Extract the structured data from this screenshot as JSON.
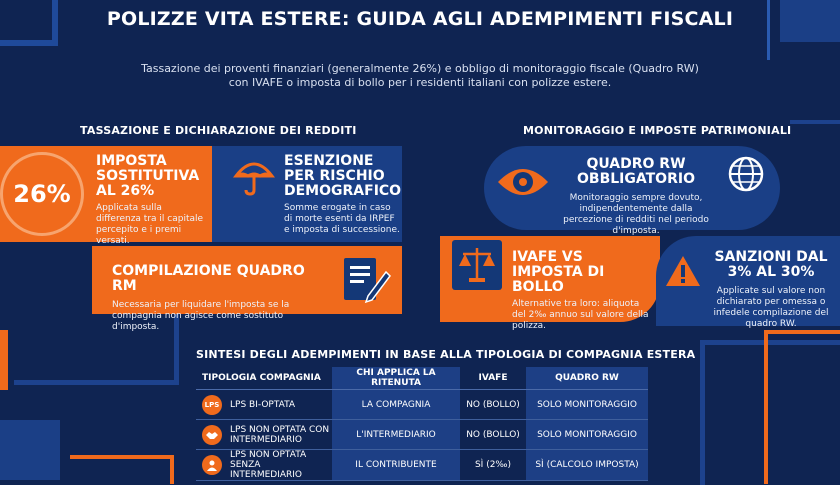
{
  "title": "POLIZZE VITA ESTERE: GUIDA AGLI ADEMPIMENTI FISCALI",
  "subtitle": "Tassazione dei proventi finanziari (generalmente 26%) e obbligo di monitoraggio fiscale (Quadro RW) con IVAFE o imposta di bollo per i residenti italiani con polizze estere.",
  "left_section": {
    "heading": "TASSAZIONE E DICHIARAZIONE DEI REDDITI",
    "rate_badge": "26%",
    "imposta": {
      "title": "IMPOSTA SOSTITUTIVA AL 26%",
      "desc": "Applicata sulla differenza tra il capitale percepito e i premi versati."
    },
    "esenzione": {
      "title": "ESENZIONE PER RISCHIO DEMOGRAFICO",
      "desc": "Somme erogate in caso di morte esenti da IRPEF e imposta di successione.",
      "icon": "umbrella-icon"
    },
    "compilazione": {
      "title": "COMPILAZIONE QUADRO RM",
      "desc": "Necessaria per liquidare l'imposta se la compagnia non agisce come sostituto d'imposta.",
      "icon": "document-pen-icon"
    }
  },
  "right_section": {
    "heading": "MONITORAGGIO E IMPOSTE PATRIMONIALI",
    "quadro_rw": {
      "title": "QUADRO RW OBBLIGATORIO",
      "desc": "Monitoraggio sempre dovuto, indipendentemente dalla percezione di redditi nel periodo d'imposta.",
      "icons": [
        "eye-icon",
        "globe-icon"
      ]
    },
    "ivafe": {
      "title": "IVAFE VS IMPOSTA DI BOLLO",
      "desc": "Alternative tra loro: aliquota del 2‰ annuo sul valore della polizza.",
      "icon": "scales-icon"
    },
    "sanzioni": {
      "title": "SANZIONI DAL 3% AL 30%",
      "desc": "Applicate sul valore non dichiarato per omessa o infedele compilazione del quadro RW.",
      "icon": "warning-icon"
    }
  },
  "summary": {
    "heading": "SINTESI DEGLI ADEMPIMENTI IN BASE ALLA TIPOLOGIA DI COMPAGNIA ESTERA",
    "columns": [
      "TIPOLOGIA COMPAGNIA",
      "CHI APPLICA LA RITENUTA",
      "IVAFE",
      "QUADRO RW"
    ],
    "rows": [
      {
        "badge": "LPS",
        "type": "LPS BI-OPTATA",
        "ritenuta": "LA COMPAGNIA",
        "ivafe": "NO (BOLLO)",
        "rw": "SOLO MONITORAGGIO"
      },
      {
        "badge": "handshake-icon",
        "type": "LPS NON OPTATA CON INTERMEDIARIO",
        "ritenuta": "L'INTERMEDIARIO",
        "ivafe": "NO (BOLLO)",
        "rw": "SOLO MONITORAGGIO"
      },
      {
        "badge": "person-icon",
        "type": "LPS NON OPTATA SENZA INTERMEDIARIO",
        "ritenuta": "IL CONTRIBUENTE",
        "ivafe": "SÌ (2‰)",
        "rw": "SÌ (CALCOLO IMPOSTA)"
      }
    ]
  },
  "colors": {
    "background": "#0f2452",
    "orange": "#f06a1c",
    "blue_card": "#1a3f86",
    "accent_light_blue": "#2a5bb0"
  }
}
